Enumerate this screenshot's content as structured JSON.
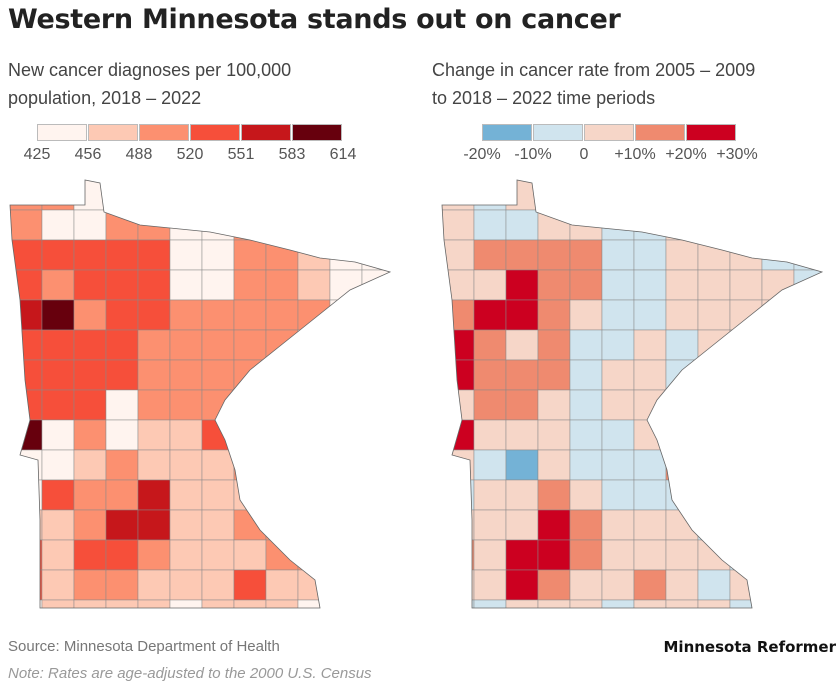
{
  "title": "Western Minnesota stands out on cancer",
  "left_map": {
    "subtitle_line1": "New cancer diagnoses per 100,000",
    "subtitle_line2": "population, 2018 – 2022",
    "legend_colors": [
      "#fff4ef",
      "#fdc9b4",
      "#fc9070",
      "#f64f3a",
      "#c6171b",
      "#67000d"
    ],
    "legend_labels": [
      "425",
      "456",
      "488",
      "520",
      "551",
      "583",
      "614"
    ]
  },
  "right_map": {
    "subtitle_line1": "Change in cancer rate from 2005 – 2009",
    "subtitle_line2": "to 2018 – 2022 time periods",
    "legend_colors": [
      "#74b2d6",
      "#d0e4ee",
      "#f6d6c8",
      "#ef8a6f",
      "#cc0020"
    ],
    "legend_labels": [
      "-20%",
      "-10%",
      "0",
      "+10%",
      "+20%",
      "+30%"
    ]
  },
  "source": "Source: Minnesota Department of Health",
  "note": "Note: Rates are age-adjusted to the 2000 U.S. Census",
  "brand": "Minnesota Reformer"
}
